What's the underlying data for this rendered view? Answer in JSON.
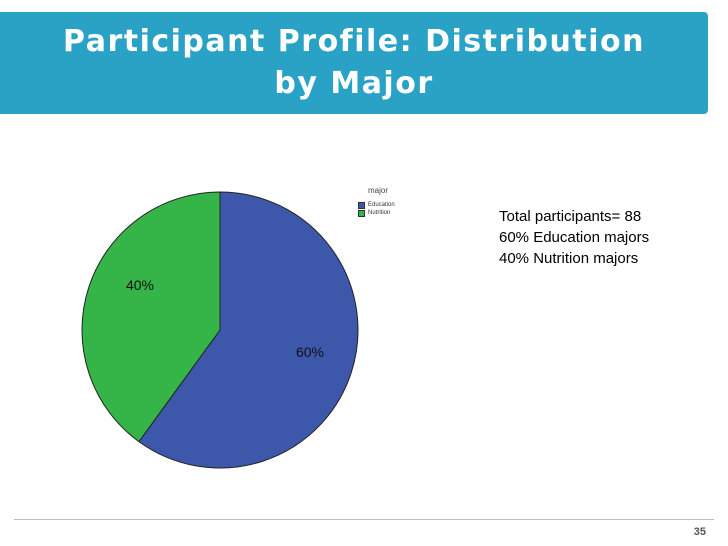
{
  "slide": {
    "title": "Participant Profile: Distribution by Major",
    "page_number": "35"
  },
  "summary": {
    "lines": [
      "Total participants= 88",
      "60% Education majors",
      "40% Nutrition majors"
    ]
  },
  "chart_data": {
    "type": "pie",
    "legend_title": "major",
    "legend_position": "top-right",
    "slices": [
      {
        "name": "Education",
        "value": 60,
        "label": "60%",
        "color": "#3d57ab"
      },
      {
        "name": "Nutrition",
        "value": 40,
        "label": "40%",
        "color": "#35b447"
      }
    ]
  }
}
